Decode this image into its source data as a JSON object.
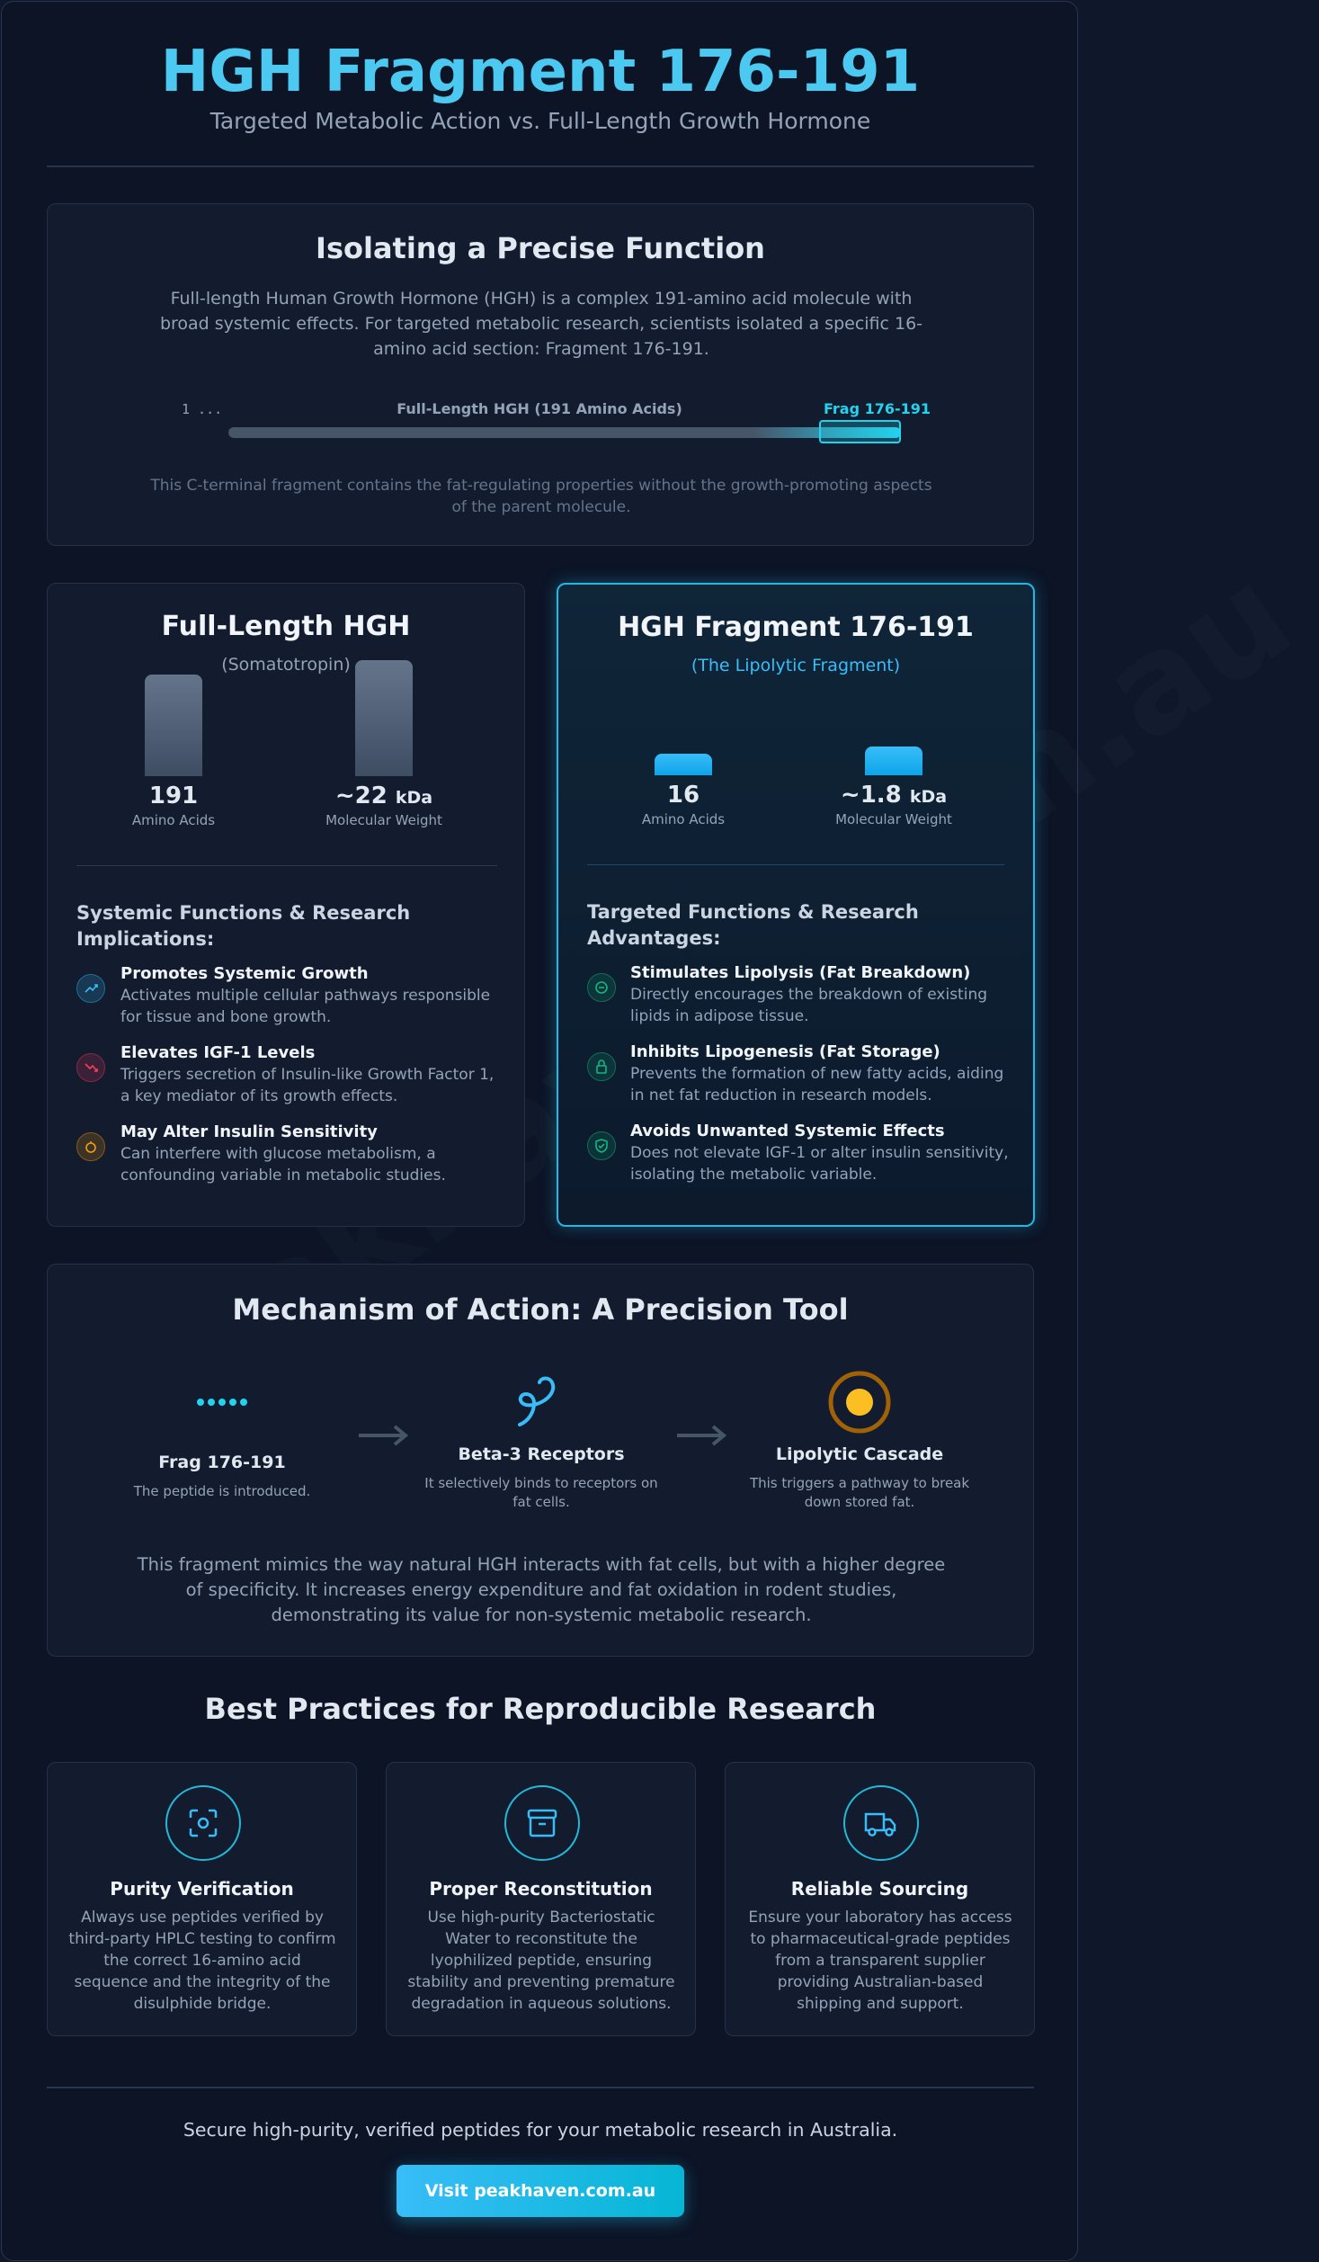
{
  "header": {
    "title": "HGH Fragment 176-191",
    "subtitle": "Targeted Metabolic Action vs. Full-Length Growth Hormone"
  },
  "watermark": "peakhaven.com.au",
  "intro": {
    "heading": "Isolating a Precise Function",
    "paragraph": "Full-length Human Growth Hormone (HGH) is a complex 191-amino acid molecule with broad systemic effects. For targeted metabolic research, scientists isolated a specific 16-amino acid section: Fragment 176-191.",
    "sequence": {
      "start_label": "1 ...",
      "full_label": "Full-Length HGH (191 Amino Acids)",
      "fragment_label": "Frag 176-191"
    },
    "note": "This C-terminal fragment contains the fat-regulating properties without the growth-promoting aspects of the parent molecule."
  },
  "comparison": [
    {
      "title": "Full-Length HGH",
      "subtitle": "(Somatotropin)",
      "stats": [
        {
          "value": "191",
          "label": "Amino Acids"
        },
        {
          "value": "~22",
          "unit": "kDa",
          "label": "Molecular Weight"
        }
      ],
      "functions_heading": "Systemic Functions & Research Implications:",
      "items": [
        {
          "title": "Promotes Systemic Growth",
          "description": "Activates multiple cellular pathways responsible for tissue and bone growth."
        },
        {
          "title": "Elevates IGF-1 Levels",
          "description": "Triggers secretion of Insulin-like Growth Factor 1, a key mediator of its growth effects."
        },
        {
          "title": "May Alter Insulin Sensitivity",
          "description": "Can interfere with glucose metabolism, a confounding variable in metabolic studies."
        }
      ]
    },
    {
      "title": "HGH Fragment 176-191",
      "subtitle": "(The Lipolytic Fragment)",
      "stats": [
        {
          "value": "16",
          "label": "Amino Acids"
        },
        {
          "value": "~1.8",
          "unit": "kDa",
          "label": "Molecular Weight"
        }
      ],
      "functions_heading": "Targeted Functions & Research Advantages:",
      "items": [
        {
          "title": "Stimulates Lipolysis (Fat Breakdown)",
          "description": "Directly encourages the breakdown of existing lipids in adipose tissue."
        },
        {
          "title": "Inhibits Lipogenesis (Fat Storage)",
          "description": "Prevents the formation of new fatty acids, aiding in net fat reduction in research models."
        },
        {
          "title": "Avoids Unwanted Systemic Effects",
          "description": "Does not elevate IGF-1 or alter insulin sensitivity, isolating the metabolic variable."
        }
      ]
    }
  ],
  "mechanism": {
    "heading": "Mechanism of Action: A Precision Tool",
    "steps": [
      {
        "title": "Frag 176-191",
        "description": "The peptide is introduced."
      },
      {
        "title": "Beta-3 Receptors",
        "description": "It selectively binds to receptors on fat cells."
      },
      {
        "title": "Lipolytic Cascade",
        "description": "This triggers a pathway to break down stored fat."
      }
    ],
    "paragraph": "This fragment mimics the way natural HGH interacts with fat cells, but with a higher degree of specificity. It increases energy expenditure and fat oxidation in rodent studies, demonstrating its value for non-systemic metabolic research."
  },
  "best_practices": {
    "heading": "Best Practices for Reproducible Research",
    "cards": [
      {
        "title": "Purity Verification",
        "description": "Always use peptides verified by third-party HPLC testing to confirm the correct 16-amino acid sequence and the integrity of the disulphide bridge."
      },
      {
        "title": "Proper Reconstitution",
        "description": "Use high-purity Bacteriostatic Water to reconstitute the lyophilized peptide, ensuring stability and preventing premature degradation in aqueous solutions."
      },
      {
        "title": "Reliable Sourcing",
        "description": "Ensure your laboratory has access to pharmaceutical-grade peptides from a transparent supplier providing Australian-based shipping and support."
      }
    ]
  },
  "footer": {
    "text": "Secure high-purity, verified peptides for your metabolic research in Australia.",
    "button": "Visit peakhaven.com.au"
  }
}
